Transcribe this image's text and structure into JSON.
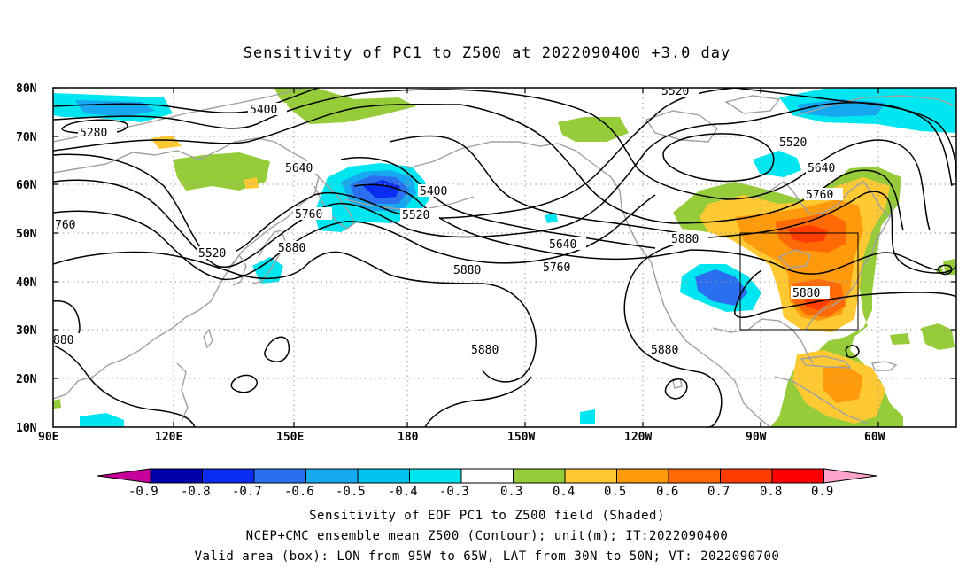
{
  "title": "Sensitivity of PC1 to Z500 at 2022090400 +3.0 day",
  "map": {
    "lat_labels": [
      "80N",
      "70N",
      "60N",
      "50N",
      "40N",
      "30N",
      "20N",
      "10N"
    ],
    "lon_labels": [
      "90E",
      "120E",
      "150E",
      "180",
      "150W",
      "120W",
      "90W",
      "60W"
    ],
    "contour_labels": [
      "5520",
      "5400",
      "5280",
      "5640",
      "5400",
      "5520",
      "5760",
      "5520",
      "5880",
      "5640",
      "5760",
      "5880",
      "5880",
      "5880",
      "5520",
      "5640",
      "5760",
      "5880",
      "5880",
      "760",
      "880"
    ],
    "colors": {
      "neg_0_9": "#c8009b",
      "neg_0_8": "#0000a8",
      "neg_0_7": "#0a2cf0",
      "neg_0_6": "#2a6ff0",
      "neg_0_5": "#16a8f0",
      "neg_0_4": "#00e6f0",
      "neutral": "#ffffff",
      "pos_0_3": "#96cc3a",
      "pos_0_4": "#ffc933",
      "pos_0_5": "#ff9a0d",
      "pos_0_6": "#ff6a06",
      "pos_0_7": "#ff3c00",
      "pos_0_8": "#ff0000",
      "pos_0_9": "#ffa3cc",
      "coast": "#a0a0a0"
    }
  },
  "colorbar": {
    "labels": [
      "-0.9",
      "-0.8",
      "-0.7",
      "-0.6",
      "-0.5",
      "-0.4",
      "-0.3",
      "0.3",
      "0.4",
      "0.5",
      "0.6",
      "0.7",
      "0.8",
      "0.9"
    ]
  },
  "footer": {
    "line1": "Sensitivity of EOF PC1 to Z500 field (Shaded)",
    "line2": "NCEP+CMC ensemble mean Z500 (Contour); unit(m); IT:2022090400",
    "line3": "Valid area (box): LON from 95W to 65W, LAT from 30N to 50N; VT: 2022090700"
  }
}
